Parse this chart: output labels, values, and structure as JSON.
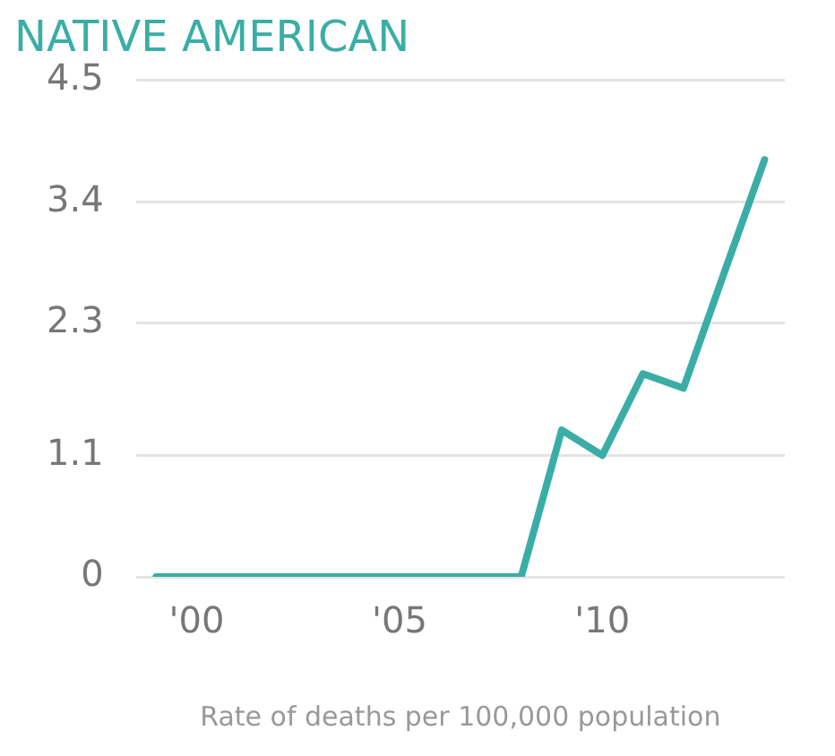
{
  "chart_data": {
    "type": "line",
    "title": "NATIVE AMERICAN",
    "xlabel": "Rate of deaths per 100,000 population",
    "x": [
      1999,
      2000,
      2001,
      2002,
      2003,
      2004,
      2005,
      2006,
      2007,
      2008,
      2009,
      2010,
      2011,
      2012,
      2013,
      2014
    ],
    "series": [
      {
        "color": "#3aaea6",
        "values": [
          0,
          0,
          0,
          0,
          0,
          0,
          0,
          0,
          0,
          0,
          1.33,
          1.1,
          1.84,
          1.71,
          2.75,
          3.78
        ]
      }
    ],
    "xlim": [
      1998.5,
      2014.5
    ],
    "xticks": [
      {
        "value": 2000,
        "label": "'00"
      },
      {
        "value": 2005,
        "label": "'05"
      },
      {
        "value": 2010,
        "label": "'10"
      }
    ],
    "ylim": [
      0,
      4.5
    ],
    "yticks": [
      0,
      1.1,
      2.3,
      3.4,
      4.5
    ],
    "grid": "y",
    "legend": false,
    "marker": "none",
    "line_style": "solid"
  }
}
